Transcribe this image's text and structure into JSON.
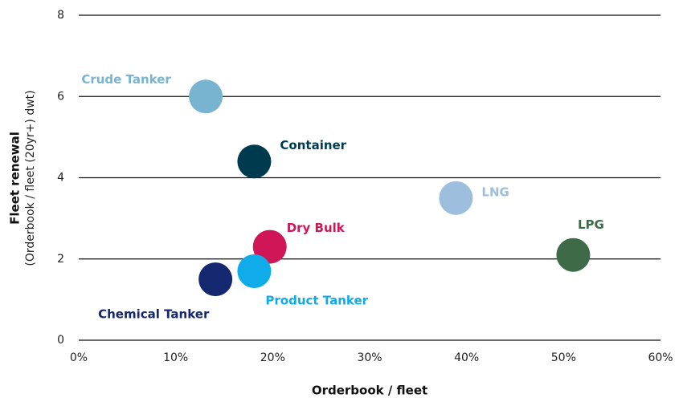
{
  "chart_data": {
    "type": "scatter",
    "xlabel": "Orderbook / fleet",
    "ylabel": "Fleet renewal",
    "ylabel_sub": "(Orderbook / fleet (20yr+) dwt)",
    "xlim": [
      0,
      60
    ],
    "xticks": [
      {
        "value": 0,
        "label": "0%"
      },
      {
        "value": 10,
        "label": "10%"
      },
      {
        "value": 20,
        "label": "20%"
      },
      {
        "value": 30,
        "label": "30%"
      },
      {
        "value": 40,
        "label": "40%"
      },
      {
        "value": 50,
        "label": "50%"
      },
      {
        "value": 60,
        "label": "60%"
      }
    ],
    "ylim": [
      0,
      8
    ],
    "yticks": [
      0,
      2,
      4,
      6,
      8
    ],
    "grid": true,
    "series": [
      {
        "name": "Crude Tanker",
        "color": "#78b4cf",
        "x": [
          13.1
        ],
        "values": [
          6.0
        ]
      },
      {
        "name": "Container",
        "color": "#003a4f",
        "x": [
          18.1
        ],
        "values": [
          4.4
        ]
      },
      {
        "name": "LNG",
        "color": "#9dbfdd",
        "x": [
          38.9
        ],
        "values": [
          3.5
        ]
      },
      {
        "name": "LPG",
        "color": "#3e6a48",
        "x": [
          51.0
        ],
        "values": [
          2.1
        ]
      },
      {
        "name": "Dry Bulk",
        "color": "#cf1657",
        "x": [
          19.7
        ],
        "values": [
          2.3
        ]
      },
      {
        "name": "Product Tanker",
        "color": "#10ace9",
        "x": [
          18.1
        ],
        "values": [
          1.7
        ]
      },
      {
        "name": "Chemical Tanker",
        "color": "#15286f",
        "x": [
          14.1
        ],
        "values": [
          1.5
        ]
      }
    ]
  }
}
